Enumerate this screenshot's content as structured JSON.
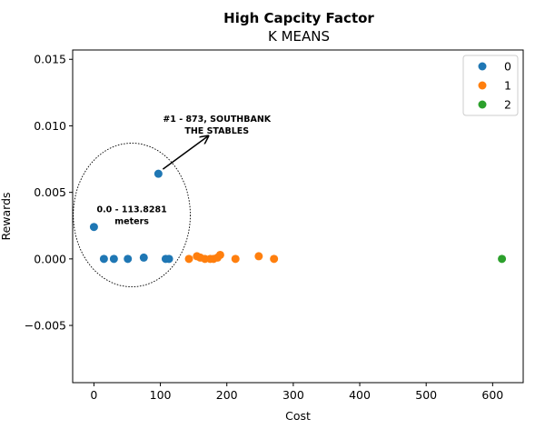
{
  "chart_data": {
    "type": "scatter",
    "title": "High Capcity Factor",
    "subtitle": "K MEANS",
    "xlabel": "Cost",
    "ylabel": "Rewards",
    "xlim": [
      -32,
      646
    ],
    "ylim": [
      -0.0093,
      0.0157
    ],
    "xticks": [
      0,
      100,
      200,
      300,
      400,
      500,
      600
    ],
    "xtick_labels": [
      "0",
      "100",
      "200",
      "300",
      "400",
      "500",
      "600"
    ],
    "yticks": [
      -0.005,
      0.0,
      0.005,
      0.01,
      0.015
    ],
    "ytick_labels": [
      "−0.005",
      "0.000",
      "0.005",
      "0.010",
      "0.015"
    ],
    "grid": false,
    "legend_position": "top-right",
    "series": [
      {
        "name": "0",
        "color": "#1f77b4",
        "points": [
          {
            "x": 0,
            "y": 0.0024
          },
          {
            "x": 15,
            "y": 0.0
          },
          {
            "x": 30,
            "y": 0.0
          },
          {
            "x": 51,
            "y": 0.0
          },
          {
            "x": 75,
            "y": 0.0001
          },
          {
            "x": 97,
            "y": 0.0064
          },
          {
            "x": 108,
            "y": 0.0
          },
          {
            "x": 113,
            "y": 0.0
          }
        ]
      },
      {
        "name": "1",
        "color": "#ff7f0e",
        "points": [
          {
            "x": 143,
            "y": 0.0
          },
          {
            "x": 155,
            "y": 0.0002
          },
          {
            "x": 160,
            "y": 0.0001
          },
          {
            "x": 167,
            "y": 0.0
          },
          {
            "x": 175,
            "y": 0.0
          },
          {
            "x": 180,
            "y": 0.0
          },
          {
            "x": 186,
            "y": 0.0001
          },
          {
            "x": 190,
            "y": 0.0003
          },
          {
            "x": 213,
            "y": 0.0
          },
          {
            "x": 248,
            "y": 0.0002
          },
          {
            "x": 271,
            "y": 0.0
          }
        ]
      },
      {
        "name": "2",
        "color": "#2ca02c",
        "points": [
          {
            "x": 614,
            "y": 0.0
          }
        ]
      }
    ],
    "annotations": [
      {
        "lines": [
          "#1 - 873, SOUTHBANK",
          "THE STABLES"
        ],
        "anchor_x": 97,
        "anchor_y": 0.0064,
        "text_x": 185,
        "text_y": 0.0101
      },
      {
        "lines": [
          "0.0 - 113.8281",
          "meters"
        ],
        "anchor_x": 57,
        "anchor_y": 0.0033,
        "text_x": 57,
        "text_y": 0.0033
      }
    ],
    "ellipse": {
      "cx": 57,
      "cy": 0.0033,
      "rx": 88,
      "ry": 0.0054
    }
  }
}
